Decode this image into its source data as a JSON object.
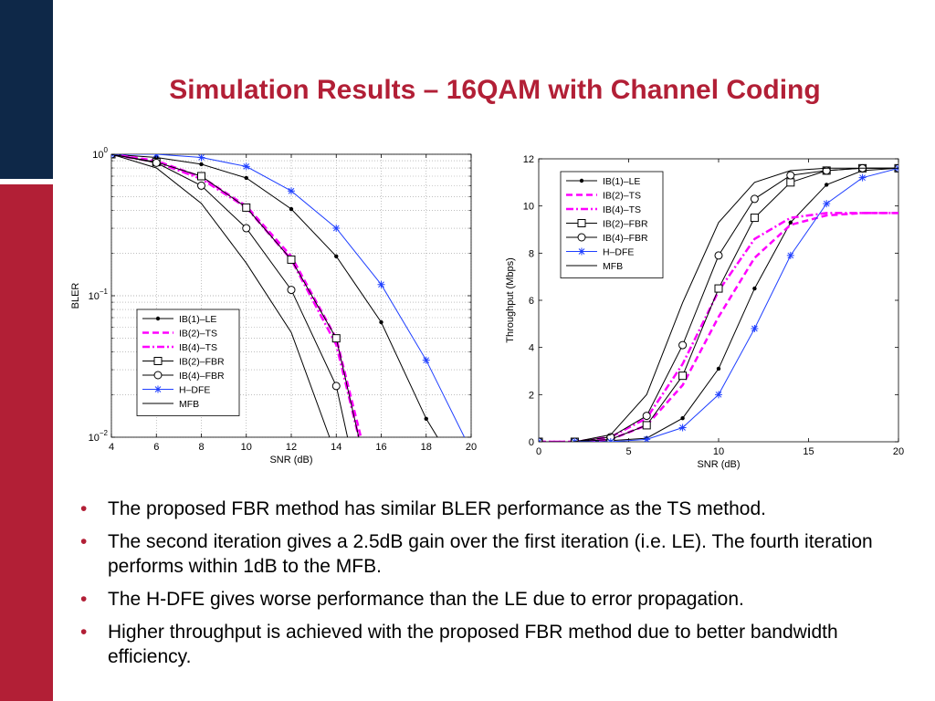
{
  "slide": {
    "title": "Simulation Results – 16QAM with Channel Coding",
    "bullet_char": "•",
    "bullets": [
      "The proposed FBR method has similar BLER performance as the TS method.",
      "The second iteration gives a 2.5dB gain over the first iteration (i.e. LE). The fourth iteration performs within 1dB to the MFB.",
      "The H-DFE gives worse performance than the LE due to error propagation.",
      "Higher throughput is achieved with the proposed FBR method due to better bandwidth efficiency."
    ],
    "colors": {
      "accent": "#b21f36",
      "navy": "#0e2848"
    }
  },
  "chart_data": [
    {
      "type": "line",
      "xlabel": "SNR (dB)",
      "ylabel": "BLER",
      "yscale": "log",
      "xlim": [
        4,
        20
      ],
      "ylim": [
        0.01,
        1
      ],
      "xticks": [
        4,
        6,
        8,
        10,
        12,
        14,
        16,
        18,
        20
      ],
      "yticks": [
        1,
        0.1,
        0.01
      ],
      "ytick_labels": [
        [
          "10",
          "0"
        ],
        [
          "10",
          "−1"
        ],
        [
          "10",
          "−2"
        ]
      ],
      "grid": true,
      "legend_position": "bottom-left",
      "series": [
        {
          "name": "IB(1)–LE",
          "color": "#000000",
          "dash": "",
          "marker": "dot",
          "x": [
            4,
            6,
            8,
            10,
            12,
            14,
            16,
            18,
            18.5
          ],
          "y": [
            1,
            0.95,
            0.85,
            0.68,
            0.41,
            0.19,
            0.065,
            0.0135,
            0.01
          ]
        },
        {
          "name": "IB(2)–TS",
          "color": "#ff00ff",
          "dash": "7,4",
          "marker": "none",
          "width": 2.5,
          "x": [
            4,
            6,
            8,
            10,
            12,
            14,
            15.1
          ],
          "y": [
            1,
            0.9,
            0.69,
            0.43,
            0.19,
            0.05,
            0.01
          ]
        },
        {
          "name": "IB(4)–TS",
          "color": "#ff00ff",
          "dash": "8,3,2,3",
          "marker": "none",
          "width": 2.5,
          "x": [
            4,
            6,
            8,
            10,
            12,
            14,
            15
          ],
          "y": [
            1,
            0.88,
            0.67,
            0.42,
            0.18,
            0.045,
            0.01
          ]
        },
        {
          "name": "IB(2)–FBR",
          "color": "#000000",
          "dash": "",
          "marker": "square",
          "x": [
            4,
            6,
            8,
            10,
            12,
            14,
            15
          ],
          "y": [
            1,
            0.88,
            0.7,
            0.42,
            0.18,
            0.05,
            0.01
          ]
        },
        {
          "name": "IB(4)–FBR",
          "color": "#000000",
          "dash": "",
          "marker": "circle",
          "x": [
            4,
            6,
            8,
            10,
            12,
            14,
            14.5
          ],
          "y": [
            1,
            0.87,
            0.6,
            0.3,
            0.11,
            0.023,
            0.01
          ]
        },
        {
          "name": "H–DFE",
          "color": "#2040ff",
          "dash": "",
          "marker": "star",
          "x": [
            4,
            6,
            8,
            10,
            12,
            14,
            16,
            18,
            19.7
          ],
          "y": [
            1,
            1,
            0.95,
            0.82,
            0.55,
            0.3,
            0.12,
            0.035,
            0.01
          ]
        },
        {
          "name": "MFB",
          "color": "#000000",
          "dash": "",
          "marker": "none",
          "x": [
            4,
            6,
            8,
            10,
            12,
            13.7
          ],
          "y": [
            1,
            0.8,
            0.45,
            0.17,
            0.055,
            0.01
          ]
        }
      ]
    },
    {
      "type": "line",
      "xlabel": "SNR (dB)",
      "ylabel": "Throughput (Mbps)",
      "xlim": [
        0,
        20
      ],
      "ylim": [
        0,
        12
      ],
      "xticks": [
        0,
        5,
        10,
        15,
        20
      ],
      "yticks": [
        0,
        2,
        4,
        6,
        8,
        10,
        12
      ],
      "grid": false,
      "legend_position": "top-left",
      "series": [
        {
          "name": "IB(1)–LE",
          "color": "#000000",
          "dash": "",
          "marker": "dot",
          "x": [
            0,
            2,
            4,
            6,
            8,
            10,
            12,
            14,
            16,
            18,
            20
          ],
          "y": [
            0,
            0,
            0.05,
            0.15,
            1.0,
            3.1,
            6.5,
            9.3,
            10.9,
            11.5,
            11.6
          ]
        },
        {
          "name": "IB(2)–TS",
          "color": "#ff00ff",
          "dash": "7,4",
          "marker": "none",
          "width": 2.5,
          "x": [
            0,
            2,
            4,
            6,
            8,
            10,
            12,
            14,
            16,
            18,
            20
          ],
          "y": [
            0,
            0,
            0.1,
            0.7,
            2.4,
            5.3,
            7.8,
            9.2,
            9.6,
            9.7,
            9.7
          ]
        },
        {
          "name": "IB(4)–TS",
          "color": "#ff00ff",
          "dash": "8,3,2,3",
          "marker": "none",
          "width": 2.5,
          "x": [
            0,
            2,
            4,
            6,
            8,
            10,
            12,
            14,
            16,
            18,
            20
          ],
          "y": [
            0,
            0,
            0.2,
            1.0,
            3.3,
            6.4,
            8.6,
            9.5,
            9.7,
            9.7,
            9.7
          ]
        },
        {
          "name": "IB(2)–FBR",
          "color": "#000000",
          "dash": "",
          "marker": "square",
          "x": [
            0,
            2,
            4,
            6,
            8,
            10,
            12,
            14,
            16,
            18,
            20
          ],
          "y": [
            0,
            0,
            0.1,
            0.7,
            2.8,
            6.5,
            9.5,
            11.0,
            11.5,
            11.6,
            11.6
          ]
        },
        {
          "name": "IB(4)–FBR",
          "color": "#000000",
          "dash": "",
          "marker": "circle",
          "x": [
            0,
            2,
            4,
            6,
            8,
            10,
            12,
            14,
            16,
            18,
            20
          ],
          "y": [
            0,
            0,
            0.2,
            1.1,
            4.1,
            7.9,
            10.3,
            11.3,
            11.5,
            11.6,
            11.6
          ]
        },
        {
          "name": "H–DFE",
          "color": "#2040ff",
          "dash": "",
          "marker": "star",
          "x": [
            0,
            2,
            4,
            6,
            8,
            10,
            12,
            14,
            16,
            18,
            20
          ],
          "y": [
            0,
            0,
            0,
            0.1,
            0.6,
            2.0,
            4.8,
            7.9,
            10.1,
            11.2,
            11.6
          ]
        },
        {
          "name": "MFB",
          "color": "#000000",
          "dash": "",
          "marker": "none",
          "x": [
            0,
            2,
            4,
            6,
            8,
            10,
            12,
            14,
            16,
            18,
            20
          ],
          "y": [
            0,
            0,
            0.3,
            2.0,
            5.9,
            9.3,
            11.0,
            11.5,
            11.6,
            11.6,
            11.6
          ]
        }
      ]
    }
  ]
}
